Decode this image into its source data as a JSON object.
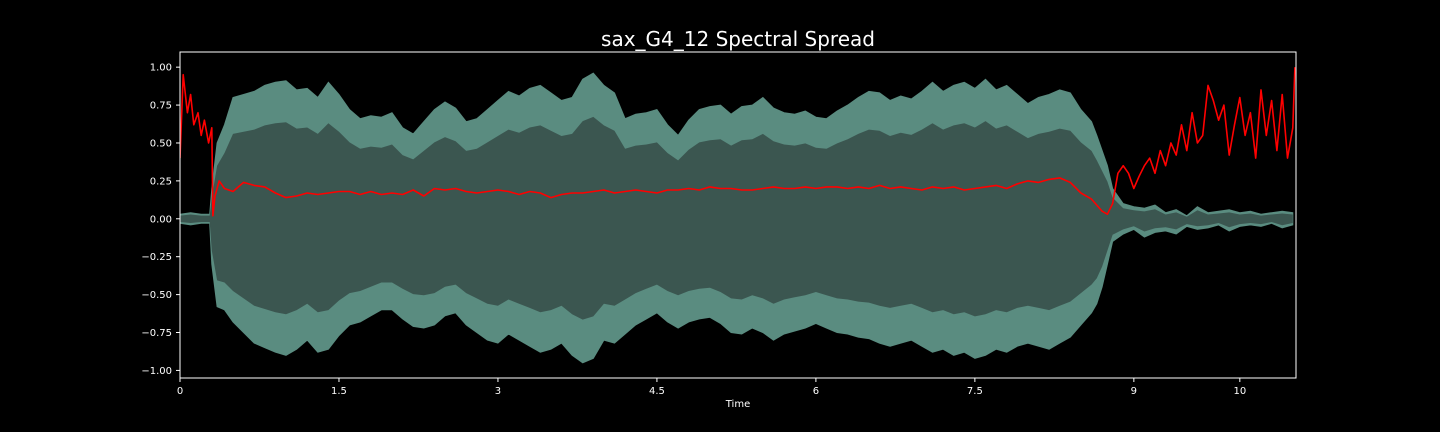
{
  "chart_data": {
    "type": "line",
    "title": "sax_G4_12 Spectral Spread",
    "xlabel": "Time",
    "ylabel": "",
    "xlim": [
      0,
      10.53
    ],
    "ylim": [
      -1.05,
      1.1
    ],
    "x_ticks": [
      0,
      1.5,
      3,
      4.5,
      6,
      7.5,
      9,
      10
    ],
    "x_tick_labels": [
      "0",
      "1.5",
      "3",
      "4.5",
      "6",
      "7.5",
      "9",
      "10"
    ],
    "y_ticks": [
      1.0,
      0.75,
      0.5,
      0.25,
      0.0,
      -0.25,
      -0.5,
      -0.75,
      -1.0
    ],
    "y_tick_labels": [
      "1.00",
      "0.75",
      "0.50",
      "0.25",
      "0.00",
      "−0.25",
      "−0.50",
      "−0.75",
      "−1.00"
    ],
    "grid": false,
    "legend": "none",
    "colors": {
      "background": "#000000",
      "axes": "#ffffff",
      "waveform_envelope": "#5a8c80",
      "waveform_body": "#3b5650",
      "spectral_spread": "#ff0000"
    },
    "series": [
      {
        "type": "area",
        "x": [
          0,
          0.1,
          0.2,
          0.28,
          0.3,
          0.35,
          0.42,
          0.5,
          0.6,
          0.7,
          0.8,
          0.9,
          1.0,
          1.1,
          1.2,
          1.3,
          1.4,
          1.5,
          1.6,
          1.7,
          1.8,
          1.9,
          2.0,
          2.1,
          2.2,
          2.3,
          2.4,
          2.5,
          2.6,
          2.7,
          2.8,
          2.9,
          3.0,
          3.1,
          3.2,
          3.3,
          3.4,
          3.5,
          3.6,
          3.7,
          3.8,
          3.9,
          4.0,
          4.1,
          4.2,
          4.3,
          4.4,
          4.5,
          4.6,
          4.7,
          4.8,
          4.9,
          5.0,
          5.1,
          5.2,
          5.3,
          5.4,
          5.5,
          5.6,
          5.7,
          5.8,
          5.9,
          6.0,
          6.1,
          6.2,
          6.3,
          6.4,
          6.5,
          6.6,
          6.7,
          6.8,
          6.9,
          7.0,
          7.1,
          7.2,
          7.3,
          7.4,
          7.5,
          7.6,
          7.7,
          7.8,
          7.9,
          8.0,
          8.1,
          8.2,
          8.3,
          8.4,
          8.5,
          8.6,
          8.65,
          8.7,
          8.75,
          8.8,
          8.9,
          9.0,
          9.1,
          9.2,
          9.3,
          9.4,
          9.5,
          9.6,
          9.7,
          9.8,
          9.9,
          10.0,
          10.1,
          10.2,
          10.3,
          10.4,
          10.5
        ],
        "upper": [
          0.03,
          0.04,
          0.03,
          0.03,
          0.2,
          0.5,
          0.62,
          0.8,
          0.82,
          0.84,
          0.88,
          0.9,
          0.91,
          0.85,
          0.86,
          0.8,
          0.9,
          0.82,
          0.72,
          0.66,
          0.68,
          0.67,
          0.7,
          0.6,
          0.56,
          0.64,
          0.72,
          0.77,
          0.73,
          0.64,
          0.66,
          0.72,
          0.78,
          0.84,
          0.81,
          0.86,
          0.88,
          0.83,
          0.78,
          0.8,
          0.92,
          0.96,
          0.88,
          0.83,
          0.66,
          0.69,
          0.7,
          0.72,
          0.62,
          0.55,
          0.65,
          0.72,
          0.74,
          0.75,
          0.69,
          0.74,
          0.75,
          0.8,
          0.73,
          0.7,
          0.69,
          0.71,
          0.67,
          0.66,
          0.71,
          0.75,
          0.8,
          0.84,
          0.83,
          0.78,
          0.81,
          0.79,
          0.84,
          0.9,
          0.84,
          0.88,
          0.9,
          0.86,
          0.92,
          0.85,
          0.88,
          0.82,
          0.76,
          0.8,
          0.82,
          0.85,
          0.83,
          0.72,
          0.64,
          0.55,
          0.45,
          0.35,
          0.2,
          0.1,
          0.08,
          0.07,
          0.09,
          0.04,
          0.06,
          0.02,
          0.08,
          0.04,
          0.05,
          0.06,
          0.04,
          0.05,
          0.03,
          0.04,
          0.05,
          0.04
        ],
        "lower": [
          -0.03,
          -0.04,
          -0.03,
          -0.03,
          -0.3,
          -0.58,
          -0.6,
          -0.68,
          -0.75,
          -0.82,
          -0.85,
          -0.88,
          -0.9,
          -0.86,
          -0.8,
          -0.88,
          -0.86,
          -0.77,
          -0.7,
          -0.68,
          -0.64,
          -0.6,
          -0.6,
          -0.66,
          -0.71,
          -0.72,
          -0.7,
          -0.64,
          -0.62,
          -0.7,
          -0.75,
          -0.8,
          -0.82,
          -0.76,
          -0.8,
          -0.84,
          -0.88,
          -0.86,
          -0.82,
          -0.9,
          -0.95,
          -0.92,
          -0.8,
          -0.82,
          -0.76,
          -0.7,
          -0.66,
          -0.62,
          -0.68,
          -0.72,
          -0.68,
          -0.66,
          -0.65,
          -0.69,
          -0.75,
          -0.76,
          -0.72,
          -0.75,
          -0.8,
          -0.76,
          -0.74,
          -0.72,
          -0.69,
          -0.72,
          -0.75,
          -0.76,
          -0.78,
          -0.79,
          -0.82,
          -0.84,
          -0.82,
          -0.8,
          -0.84,
          -0.88,
          -0.86,
          -0.9,
          -0.88,
          -0.92,
          -0.9,
          -0.86,
          -0.88,
          -0.84,
          -0.82,
          -0.84,
          -0.86,
          -0.82,
          -0.78,
          -0.7,
          -0.62,
          -0.56,
          -0.45,
          -0.3,
          -0.15,
          -0.1,
          -0.07,
          -0.12,
          -0.09,
          -0.08,
          -0.1,
          -0.05,
          -0.07,
          -0.06,
          -0.04,
          -0.08,
          -0.05,
          -0.04,
          -0.05,
          -0.03,
          -0.06,
          -0.04
        ]
      },
      {
        "type": "line",
        "x": [
          0,
          0.03,
          0.07,
          0.1,
          0.13,
          0.17,
          0.2,
          0.23,
          0.27,
          0.3,
          0.31,
          0.33,
          0.37,
          0.42,
          0.5,
          0.6,
          0.7,
          0.8,
          0.9,
          1.0,
          1.1,
          1.2,
          1.3,
          1.4,
          1.5,
          1.6,
          1.7,
          1.8,
          1.9,
          2.0,
          2.1,
          2.2,
          2.3,
          2.4,
          2.5,
          2.6,
          2.7,
          2.8,
          2.9,
          3.0,
          3.1,
          3.2,
          3.3,
          3.4,
          3.5,
          3.6,
          3.7,
          3.8,
          3.9,
          4.0,
          4.1,
          4.2,
          4.3,
          4.4,
          4.5,
          4.6,
          4.7,
          4.8,
          4.9,
          5.0,
          5.1,
          5.2,
          5.3,
          5.4,
          5.5,
          5.6,
          5.7,
          5.8,
          5.9,
          6.0,
          6.1,
          6.2,
          6.3,
          6.4,
          6.5,
          6.6,
          6.7,
          6.8,
          6.9,
          7.0,
          7.1,
          7.2,
          7.3,
          7.4,
          7.5,
          7.6,
          7.7,
          7.8,
          7.9,
          8.0,
          8.1,
          8.2,
          8.3,
          8.4,
          8.5,
          8.6,
          8.7,
          8.75,
          8.8,
          8.85,
          8.9,
          8.95,
          9.0,
          9.05,
          9.1,
          9.15,
          9.2,
          9.25,
          9.3,
          9.35,
          9.4,
          9.45,
          9.5,
          9.55,
          9.6,
          9.65,
          9.7,
          9.75,
          9.8,
          9.85,
          9.9,
          9.95,
          10.0,
          10.05,
          10.1,
          10.15,
          10.2,
          10.25,
          10.3,
          10.35,
          10.4,
          10.45,
          10.5,
          10.52
        ],
        "values": [
          0.4,
          0.95,
          0.7,
          0.82,
          0.62,
          0.7,
          0.55,
          0.65,
          0.5,
          0.6,
          0.02,
          0.15,
          0.25,
          0.2,
          0.18,
          0.24,
          0.22,
          0.21,
          0.17,
          0.14,
          0.15,
          0.17,
          0.16,
          0.17,
          0.18,
          0.18,
          0.16,
          0.18,
          0.16,
          0.17,
          0.16,
          0.19,
          0.15,
          0.2,
          0.19,
          0.2,
          0.18,
          0.17,
          0.18,
          0.19,
          0.18,
          0.16,
          0.18,
          0.17,
          0.14,
          0.16,
          0.17,
          0.17,
          0.18,
          0.19,
          0.17,
          0.18,
          0.19,
          0.18,
          0.17,
          0.19,
          0.19,
          0.2,
          0.19,
          0.21,
          0.2,
          0.2,
          0.19,
          0.19,
          0.2,
          0.21,
          0.2,
          0.2,
          0.21,
          0.2,
          0.21,
          0.21,
          0.2,
          0.21,
          0.2,
          0.22,
          0.2,
          0.21,
          0.2,
          0.19,
          0.21,
          0.2,
          0.21,
          0.19,
          0.2,
          0.21,
          0.22,
          0.2,
          0.23,
          0.25,
          0.24,
          0.26,
          0.27,
          0.24,
          0.17,
          0.13,
          0.05,
          0.03,
          0.1,
          0.3,
          0.35,
          0.3,
          0.2,
          0.28,
          0.35,
          0.4,
          0.3,
          0.45,
          0.35,
          0.5,
          0.42,
          0.62,
          0.45,
          0.7,
          0.5,
          0.55,
          0.88,
          0.78,
          0.65,
          0.75,
          0.42,
          0.62,
          0.8,
          0.55,
          0.7,
          0.4,
          0.85,
          0.55,
          0.78,
          0.45,
          0.82,
          0.4,
          0.6,
          1.0
        ]
      }
    ]
  }
}
